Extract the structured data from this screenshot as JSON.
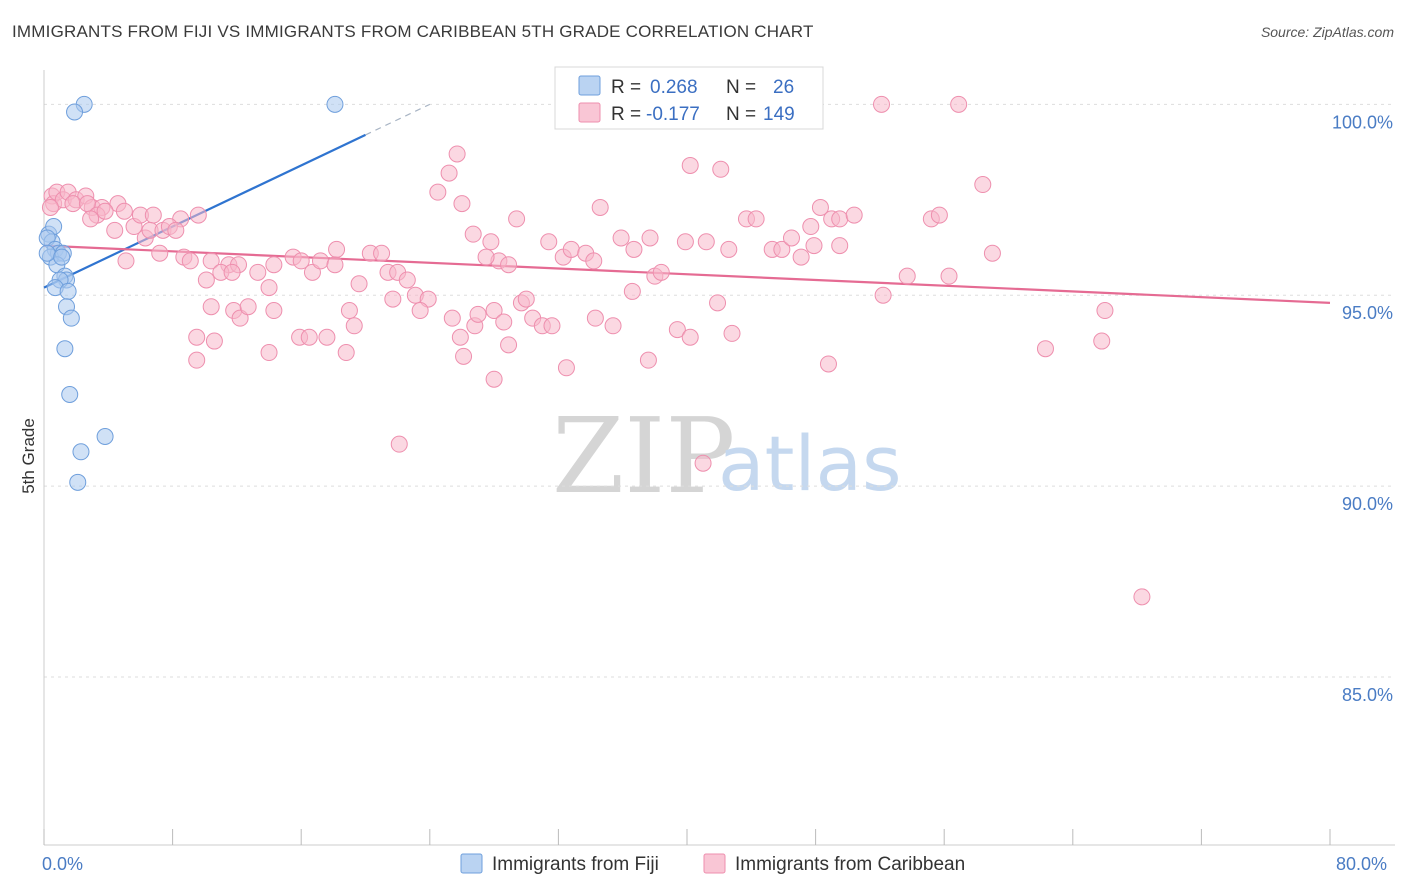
{
  "title": "IMMIGRANTS FROM FIJI VS IMMIGRANTS FROM CARIBBEAN 5TH GRADE CORRELATION CHART",
  "source": "Source: ZipAtlas.com",
  "watermark": {
    "zip": "ZIP",
    "atlas": "atlas"
  },
  "colors": {
    "fiji_fill": "#a9c8ef",
    "fiji_stroke": "#6f9fdc",
    "fiji_line": "#2f74d0",
    "carib_fill": "#f7b8cb",
    "carib_stroke": "#ee8fae",
    "carib_line": "#e56b93",
    "tick_label": "#4a7cc4",
    "grid": "#dddddd"
  },
  "legend": {
    "rows": [
      {
        "r_label": "R =",
        "r_value": "0.268",
        "n_label": "N =",
        "n_value": "26"
      },
      {
        "r_label": "R =",
        "r_value": "-0.177",
        "n_label": "N =",
        "n_value": "149"
      }
    ]
  },
  "chart_data": {
    "type": "scatter",
    "title": "IMMIGRANTS FROM FIJI VS IMMIGRANTS FROM CARIBBEAN 5TH GRADE CORRELATION CHART",
    "xlabel": "",
    "ylabel": "5th Grade",
    "xlim": [
      0,
      80
    ],
    "ylim": [
      80.6,
      100.9
    ],
    "x_tick_labels": [
      "0.0%",
      "80.0%"
    ],
    "y_ticks": [
      85,
      90,
      95,
      100
    ],
    "y_tick_labels": [
      "85.0%",
      "90.0%",
      "95.0%",
      "100.0%"
    ],
    "grid": true,
    "series": [
      {
        "name": "Immigrants from Fiji",
        "color_key": "fiji",
        "R": 0.268,
        "N": 26,
        "trend": {
          "x0": 0.0,
          "y0": 95.2,
          "x1": 20.0,
          "y1": 99.2,
          "dashed_to_x": 24.0,
          "dashed_to_y": 100.0
        },
        "points": [
          [
            2.5,
            100.0
          ],
          [
            1.9,
            99.8
          ],
          [
            18.1,
            100.0
          ],
          [
            0.3,
            96.6
          ],
          [
            0.6,
            96.8
          ],
          [
            0.5,
            96.4
          ],
          [
            0.2,
            96.5
          ],
          [
            0.7,
            96.2
          ],
          [
            0.9,
            96.1
          ],
          [
            0.4,
            96.0
          ],
          [
            1.2,
            96.1
          ],
          [
            0.8,
            95.8
          ],
          [
            1.3,
            95.5
          ],
          [
            1.4,
            95.4
          ],
          [
            1.0,
            95.4
          ],
          [
            0.7,
            95.2
          ],
          [
            1.5,
            95.1
          ],
          [
            1.4,
            94.7
          ],
          [
            1.7,
            94.4
          ],
          [
            1.3,
            93.6
          ],
          [
            1.6,
            92.4
          ],
          [
            3.8,
            91.3
          ],
          [
            2.3,
            90.9
          ],
          [
            2.1,
            90.1
          ],
          [
            0.2,
            96.1
          ],
          [
            1.1,
            96.0
          ]
        ]
      },
      {
        "name": "Immigrants from Caribbean",
        "color_key": "carib",
        "R": -0.177,
        "N": 149,
        "trend": {
          "x0": 0.0,
          "y0": 96.3,
          "x1": 80.0,
          "y1": 94.8
        },
        "points": [
          [
            0.5,
            97.6
          ],
          [
            0.6,
            97.4
          ],
          [
            0.8,
            97.7
          ],
          [
            1.2,
            97.5
          ],
          [
            1.5,
            97.7
          ],
          [
            2.0,
            97.5
          ],
          [
            2.6,
            97.6
          ],
          [
            3.0,
            97.3
          ],
          [
            3.6,
            97.3
          ],
          [
            4.6,
            97.4
          ],
          [
            0.4,
            97.3
          ],
          [
            1.8,
            97.4
          ],
          [
            2.7,
            97.4
          ],
          [
            3.3,
            97.1
          ],
          [
            3.8,
            97.2
          ],
          [
            5.0,
            97.2
          ],
          [
            5.6,
            96.8
          ],
          [
            6.0,
            97.1
          ],
          [
            6.8,
            97.1
          ],
          [
            6.3,
            96.5
          ],
          [
            6.6,
            96.7
          ],
          [
            7.4,
            96.7
          ],
          [
            8.5,
            97.0
          ],
          [
            9.6,
            97.1
          ],
          [
            7.8,
            96.8
          ],
          [
            8.2,
            96.7
          ],
          [
            4.4,
            96.7
          ],
          [
            2.9,
            97.0
          ],
          [
            5.1,
            95.9
          ],
          [
            7.2,
            96.1
          ],
          [
            8.7,
            96.0
          ],
          [
            9.1,
            95.9
          ],
          [
            10.4,
            95.9
          ],
          [
            11.5,
            95.8
          ],
          [
            12.1,
            95.8
          ],
          [
            11.0,
            95.6
          ],
          [
            13.3,
            95.6
          ],
          [
            10.1,
            95.4
          ],
          [
            11.7,
            95.6
          ],
          [
            14.0,
            95.2
          ],
          [
            14.3,
            95.8
          ],
          [
            15.5,
            96.0
          ],
          [
            16.0,
            95.9
          ],
          [
            16.7,
            95.6
          ],
          [
            17.2,
            95.9
          ],
          [
            18.1,
            95.8
          ],
          [
            18.2,
            96.2
          ],
          [
            19.6,
            95.3
          ],
          [
            20.3,
            96.1
          ],
          [
            21.0,
            96.1
          ],
          [
            21.4,
            95.6
          ],
          [
            22.0,
            95.6
          ],
          [
            22.6,
            95.4
          ],
          [
            23.1,
            95.0
          ],
          [
            23.9,
            94.9
          ],
          [
            24.5,
            97.7
          ],
          [
            25.7,
            98.7
          ],
          [
            25.2,
            98.2
          ],
          [
            26.0,
            97.4
          ],
          [
            26.7,
            96.6
          ],
          [
            27.8,
            96.4
          ],
          [
            28.3,
            95.9
          ],
          [
            28.9,
            95.8
          ],
          [
            27.5,
            96.0
          ],
          [
            29.4,
            97.0
          ],
          [
            31.4,
            96.4
          ],
          [
            32.3,
            96.0
          ],
          [
            32.8,
            96.2
          ],
          [
            33.7,
            96.1
          ],
          [
            34.2,
            95.9
          ],
          [
            34.6,
            97.3
          ],
          [
            35.9,
            96.5
          ],
          [
            36.6,
            95.1
          ],
          [
            36.7,
            96.2
          ],
          [
            37.7,
            96.5
          ],
          [
            38.0,
            95.5
          ],
          [
            38.4,
            95.6
          ],
          [
            39.9,
            96.4
          ],
          [
            40.2,
            98.4
          ],
          [
            41.2,
            96.4
          ],
          [
            41.9,
            94.8
          ],
          [
            42.1,
            98.3
          ],
          [
            42.6,
            96.2
          ],
          [
            42.8,
            94.0
          ],
          [
            43.7,
            97.0
          ],
          [
            44.3,
            97.0
          ],
          [
            45.3,
            96.2
          ],
          [
            45.9,
            96.2
          ],
          [
            46.5,
            96.5
          ],
          [
            47.1,
            96.0
          ],
          [
            47.7,
            96.8
          ],
          [
            47.9,
            96.3
          ],
          [
            48.3,
            97.3
          ],
          [
            49.0,
            97.0
          ],
          [
            49.5,
            97.0
          ],
          [
            49.5,
            96.3
          ],
          [
            50.4,
            97.1
          ],
          [
            52.2,
            95.0
          ],
          [
            53.7,
            95.5
          ],
          [
            55.2,
            97.0
          ],
          [
            55.7,
            97.1
          ],
          [
            56.3,
            95.5
          ],
          [
            52.1,
            100.0
          ],
          [
            56.9,
            100.0
          ],
          [
            58.4,
            97.9
          ],
          [
            59.0,
            96.1
          ],
          [
            11.8,
            94.6
          ],
          [
            12.2,
            94.4
          ],
          [
            12.7,
            94.7
          ],
          [
            14.3,
            94.6
          ],
          [
            15.9,
            93.9
          ],
          [
            16.5,
            93.9
          ],
          [
            17.6,
            93.9
          ],
          [
            10.4,
            94.7
          ],
          [
            10.6,
            93.8
          ],
          [
            9.5,
            93.9
          ],
          [
            14.0,
            93.5
          ],
          [
            19.3,
            94.2
          ],
          [
            19.0,
            94.6
          ],
          [
            18.8,
            93.5
          ],
          [
            21.7,
            94.9
          ],
          [
            23.4,
            94.6
          ],
          [
            25.4,
            94.4
          ],
          [
            26.1,
            93.4
          ],
          [
            25.9,
            93.9
          ],
          [
            26.8,
            94.2
          ],
          [
            27.0,
            94.5
          ],
          [
            28.0,
            94.6
          ],
          [
            28.6,
            94.3
          ],
          [
            28.9,
            93.7
          ],
          [
            29.7,
            94.8
          ],
          [
            30.0,
            94.9
          ],
          [
            30.4,
            94.4
          ],
          [
            31.0,
            94.2
          ],
          [
            31.6,
            94.2
          ],
          [
            32.5,
            93.1
          ],
          [
            34.3,
            94.4
          ],
          [
            35.4,
            94.2
          ],
          [
            37.6,
            93.3
          ],
          [
            39.4,
            94.1
          ],
          [
            40.2,
            93.9
          ],
          [
            28.0,
            92.8
          ],
          [
            22.1,
            91.1
          ],
          [
            41.0,
            90.6
          ],
          [
            48.8,
            93.2
          ],
          [
            62.3,
            93.6
          ],
          [
            65.8,
            93.8
          ],
          [
            66.0,
            94.6
          ],
          [
            68.3,
            87.1
          ],
          [
            9.5,
            93.3
          ]
        ]
      }
    ]
  },
  "bottom_legend": [
    {
      "label": "Immigrants from Fiji",
      "color_key": "fiji"
    },
    {
      "label": "Immigrants from Caribbean",
      "color_key": "carib"
    }
  ]
}
